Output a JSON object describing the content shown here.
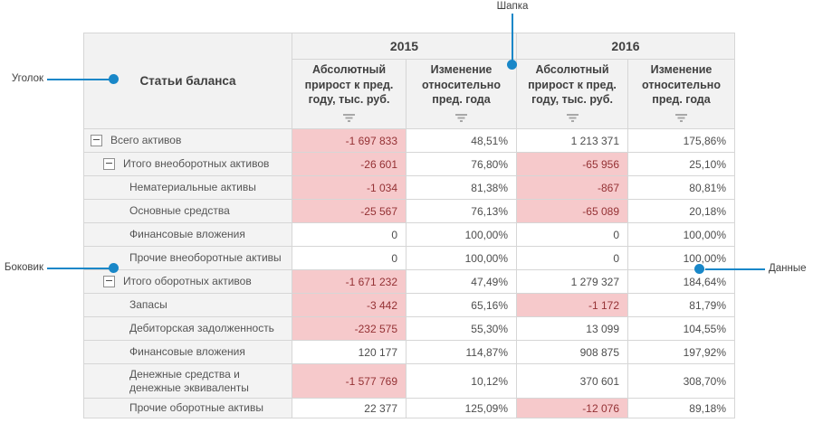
{
  "annotations": {
    "header_label": "Шапка",
    "corner_label": "Уголок",
    "side_label": "Боковик",
    "data_label": "Данные",
    "accent_color": "#1987c8"
  },
  "colors": {
    "negative_cell_bg": "#f6c9cb",
    "negative_cell_text": "#943134",
    "header_bg": "#f2f2f2",
    "corner_border": "#7a7a7a"
  },
  "table": {
    "corner_title": "Статьи баланса",
    "year_groups": [
      {
        "year": "2015",
        "columns": [
          "Абсолютный прирост к пред. году, тыс. руб.",
          "Изменение относительно пред. года"
        ]
      },
      {
        "year": "2016",
        "columns": [
          "Абсолютный прирост к пред. году, тыс. руб.",
          "Изменение относительно пред. года"
        ]
      }
    ],
    "rows": [
      {
        "label": "Всего активов",
        "level": 0,
        "expandable": true,
        "tall": false,
        "cells": [
          {
            "value": "-1 697 833",
            "negative": true
          },
          {
            "value": "48,51%",
            "negative": false
          },
          {
            "value": "1 213 371",
            "negative": false
          },
          {
            "value": "175,86%",
            "negative": false
          }
        ]
      },
      {
        "label": "Итого внеоборотных активов",
        "level": 1,
        "expandable": true,
        "tall": false,
        "cells": [
          {
            "value": "-26 601",
            "negative": true
          },
          {
            "value": "76,80%",
            "negative": false
          },
          {
            "value": "-65 956",
            "negative": true
          },
          {
            "value": "25,10%",
            "negative": false
          }
        ]
      },
      {
        "label": "Нематериальные активы",
        "level": 2,
        "expandable": false,
        "tall": false,
        "cells": [
          {
            "value": "-1 034",
            "negative": true
          },
          {
            "value": "81,38%",
            "negative": false
          },
          {
            "value": "-867",
            "negative": true
          },
          {
            "value": "80,81%",
            "negative": false
          }
        ]
      },
      {
        "label": "Основные средства",
        "level": 2,
        "expandable": false,
        "tall": false,
        "cells": [
          {
            "value": "-25 567",
            "negative": true
          },
          {
            "value": "76,13%",
            "negative": false
          },
          {
            "value": "-65 089",
            "negative": true
          },
          {
            "value": "20,18%",
            "negative": false
          }
        ]
      },
      {
        "label": "Финансовые вложения",
        "level": 2,
        "expandable": false,
        "tall": false,
        "cells": [
          {
            "value": "0",
            "negative": false
          },
          {
            "value": "100,00%",
            "negative": false
          },
          {
            "value": "0",
            "negative": false
          },
          {
            "value": "100,00%",
            "negative": false
          }
        ]
      },
      {
        "label": "Прочие внеоборотные активы",
        "level": 2,
        "expandable": false,
        "tall": false,
        "cells": [
          {
            "value": "0",
            "negative": false
          },
          {
            "value": "100,00%",
            "negative": false
          },
          {
            "value": "0",
            "negative": false
          },
          {
            "value": "100,00%",
            "negative": false
          }
        ]
      },
      {
        "label": "Итого оборотных активов",
        "level": 1,
        "expandable": true,
        "tall": false,
        "cells": [
          {
            "value": "-1 671 232",
            "negative": true
          },
          {
            "value": "47,49%",
            "negative": false
          },
          {
            "value": "1 279 327",
            "negative": false
          },
          {
            "value": "184,64%",
            "negative": false
          }
        ]
      },
      {
        "label": "Запасы",
        "level": 2,
        "expandable": false,
        "tall": false,
        "cells": [
          {
            "value": "-3 442",
            "negative": true
          },
          {
            "value": "65,16%",
            "negative": false
          },
          {
            "value": "-1 172",
            "negative": true
          },
          {
            "value": "81,79%",
            "negative": false
          }
        ]
      },
      {
        "label": "Дебиторская задолженность",
        "level": 2,
        "expandable": false,
        "tall": false,
        "cells": [
          {
            "value": "-232 575",
            "negative": true
          },
          {
            "value": "55,30%",
            "negative": false
          },
          {
            "value": "13 099",
            "negative": false
          },
          {
            "value": "104,55%",
            "negative": false
          }
        ]
      },
      {
        "label": "Финансовые вложения",
        "level": 2,
        "expandable": false,
        "tall": false,
        "cells": [
          {
            "value": "120 177",
            "negative": false
          },
          {
            "value": "114,87%",
            "negative": false
          },
          {
            "value": "908 875",
            "negative": false
          },
          {
            "value": "197,92%",
            "negative": false
          }
        ]
      },
      {
        "label": "Денежные средства и денежные эквиваленты",
        "level": 2,
        "expandable": false,
        "tall": true,
        "cells": [
          {
            "value": "-1 577 769",
            "negative": true
          },
          {
            "value": "10,12%",
            "negative": false
          },
          {
            "value": "370 601",
            "negative": false
          },
          {
            "value": "308,70%",
            "negative": false
          }
        ]
      },
      {
        "label": "Прочие оборотные активы",
        "level": 2,
        "expandable": false,
        "tall": false,
        "cells": [
          {
            "value": "22 377",
            "negative": false
          },
          {
            "value": "125,09%",
            "negative": false
          },
          {
            "value": "-12 076",
            "negative": true
          },
          {
            "value": "89,18%",
            "negative": false
          }
        ]
      }
    ]
  }
}
